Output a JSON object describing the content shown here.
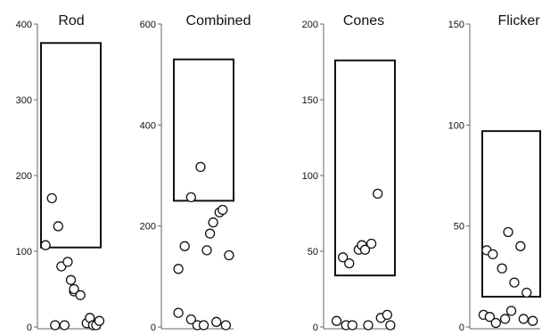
{
  "chart_data": [
    {
      "type": "scatter",
      "title": "Rod",
      "ylim": [
        0,
        400
      ],
      "yticks": [
        0,
        100,
        200,
        300,
        400
      ],
      "tick_labels": [
        "0",
        "100",
        "200",
        "300",
        "400"
      ],
      "normal_range": [
        105,
        375
      ],
      "x": [
        0.1,
        0.2,
        0.3,
        0.35,
        0.45,
        0.5,
        0.55,
        0.55,
        0.65,
        0.75,
        0.8,
        0.85,
        0.9,
        0.95,
        0.25,
        0.4
      ],
      "y": [
        108,
        170,
        133,
        80,
        86,
        62,
        47,
        50,
        42,
        5,
        12,
        0,
        0,
        8,
        0,
        2
      ]
    },
    {
      "type": "scatter",
      "title": "Combined",
      "ylim": [
        0,
        600
      ],
      "yticks": [
        0,
        200,
        400,
        600
      ],
      "tick_labels": [
        "0",
        "200",
        "400",
        "600"
      ],
      "normal_range": [
        250,
        530
      ],
      "x": [
        0.1,
        0.2,
        0.3,
        0.45,
        0.55,
        0.6,
        0.65,
        0.75,
        0.8,
        0.9,
        0.1,
        0.3,
        0.4,
        0.5,
        0.7,
        0.85
      ],
      "y": [
        115,
        160,
        257,
        317,
        152,
        185,
        207,
        227,
        232,
        142,
        28,
        15,
        3,
        0,
        10,
        0
      ],
      "x_override_note": ""
    },
    {
      "type": "scatter",
      "title": "Cones",
      "ylim": [
        0,
        200
      ],
      "yticks": [
        0,
        50,
        100,
        150,
        200
      ],
      "tick_labels": [
        "0",
        "50",
        "100",
        "150",
        "200"
      ],
      "normal_range": [
        34,
        176
      ],
      "x": [
        0.15,
        0.25,
        0.4,
        0.45,
        0.5,
        0.6,
        0.7,
        0.75,
        0.85,
        0.9,
        0.05,
        0.2,
        0.3,
        0.55
      ],
      "y": [
        46,
        42,
        51,
        54,
        51,
        55,
        88,
        6,
        8,
        0,
        4,
        0,
        0,
        0
      ]
    },
    {
      "type": "scatter",
      "title": "Flicker",
      "ylim": [
        0,
        150
      ],
      "yticks": [
        0,
        50,
        100,
        150
      ],
      "tick_labels": [
        "0",
        "50",
        "100",
        "150"
      ],
      "normal_range": [
        15,
        97
      ],
      "x": [
        0.1,
        0.2,
        0.35,
        0.45,
        0.55,
        0.65,
        0.75,
        0.05,
        0.15,
        0.25,
        0.4,
        0.5,
        0.7,
        0.85
      ],
      "y": [
        38,
        36,
        29,
        47,
        22,
        40,
        17,
        6,
        5,
        2,
        4,
        8,
        4,
        3
      ]
    }
  ]
}
